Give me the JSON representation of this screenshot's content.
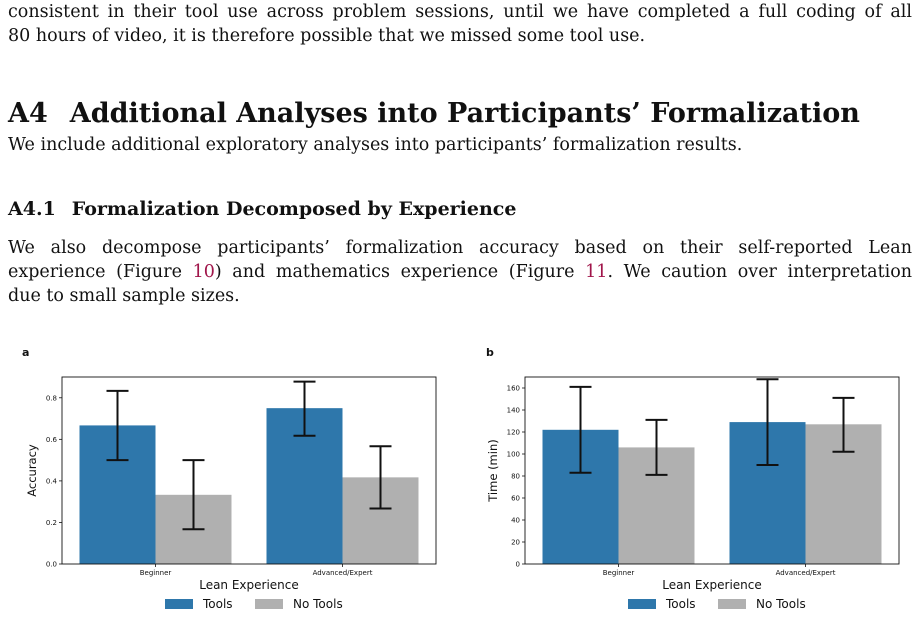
{
  "intro": {
    "line1": "consistent in their tool use across problem sessions, until we have completed a full coding of all",
    "line2_num": "80",
    "line2_rest": " hours of video, it is therefore possible that we missed some tool use."
  },
  "section": {
    "number": "A4",
    "title": "Additional Analyses into Participants’ Formalization",
    "intro": "We include additional exploratory analyses into participants’ formalization results."
  },
  "subsection": {
    "number": "A4.1",
    "title": "Formalization Decomposed by Experience",
    "line1": "We also decompose participants’ formalization accuracy based on their self-reported Lean",
    "line2_a": "experience (Figure ",
    "line2_ref1": "10",
    "line2_b": ") and mathematics experience (Figure ",
    "line2_ref2": "11",
    "line2_c": ". We caution over interpretation",
    "line3": "due to small sample sizes."
  },
  "colors": {
    "tools": "#2e77ab",
    "no_tools": "#b0b0b0",
    "link": "#a0154a"
  },
  "chart_data": [
    {
      "panel": "a",
      "type": "bar",
      "categories": [
        "Beginner",
        "Advanced/Expert"
      ],
      "xlabel": "Lean Experience",
      "ylabel": "Accuracy",
      "ylim": [
        0,
        0.9
      ],
      "yticks": [
        "0.0",
        "0.2",
        "0.4",
        "0.6",
        "0.8"
      ],
      "series": [
        {
          "name": "Tools",
          "values": [
            0.667,
            0.75
          ],
          "err_low": [
            0.5,
            0.617
          ],
          "err_high": [
            0.833,
            0.878
          ]
        },
        {
          "name": "No Tools",
          "values": [
            0.333,
            0.417
          ],
          "err_low": [
            0.167,
            0.267
          ],
          "err_high": [
            0.5,
            0.567
          ]
        }
      ],
      "legend_position": "below"
    },
    {
      "panel": "b",
      "type": "bar",
      "categories": [
        "Beginner",
        "Advanced/Expert"
      ],
      "xlabel": "Lean Experience",
      "ylabel": "Time (min)",
      "ylim": [
        0,
        170
      ],
      "yticks": [
        "0",
        "20",
        "40",
        "60",
        "80",
        "100",
        "120",
        "140",
        "160"
      ],
      "series": [
        {
          "name": "Tools",
          "values": [
            122,
            129
          ],
          "err_low": [
            83,
            90
          ],
          "err_high": [
            161,
            168
          ]
        },
        {
          "name": "No Tools",
          "values": [
            106,
            127
          ],
          "err_low": [
            81,
            102
          ],
          "err_high": [
            131,
            151
          ]
        }
      ],
      "legend_position": "below"
    }
  ]
}
